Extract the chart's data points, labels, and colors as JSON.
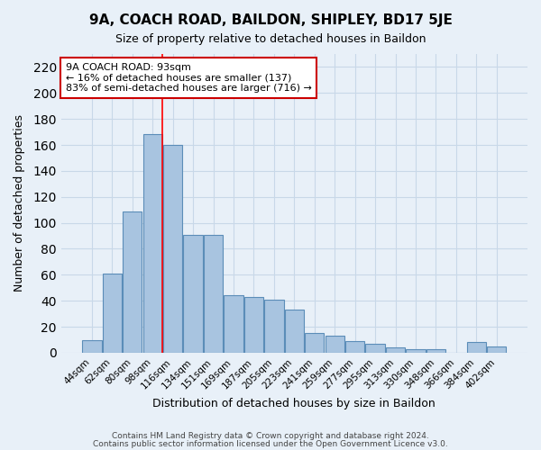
{
  "title": "9A, COACH ROAD, BAILDON, SHIPLEY, BD17 5JE",
  "subtitle": "Size of property relative to detached houses in Baildon",
  "xlabel": "Distribution of detached houses by size in Baildon",
  "ylabel": "Number of detached properties",
  "footer_line1": "Contains HM Land Registry data © Crown copyright and database right 2024.",
  "footer_line2": "Contains public sector information licensed under the Open Government Licence v3.0.",
  "bar_labels": [
    "44sqm",
    "62sqm",
    "80sqm",
    "98sqm",
    "116sqm",
    "134sqm",
    "151sqm",
    "169sqm",
    "187sqm",
    "205sqm",
    "223sqm",
    "241sqm",
    "259sqm",
    "277sqm",
    "295sqm",
    "313sqm",
    "330sqm",
    "348sqm",
    "366sqm",
    "384sqm",
    "402sqm"
  ],
  "bar_values": [
    10,
    61,
    109,
    168,
    160,
    91,
    91,
    44,
    43,
    41,
    33,
    15,
    13,
    9,
    7,
    4,
    3,
    3,
    0,
    8,
    5
  ],
  "bar_color": "#a8c4e0",
  "bar_edge_color": "#5b8db8",
  "ylim": [
    0,
    230
  ],
  "yticks": [
    0,
    20,
    40,
    60,
    80,
    100,
    120,
    140,
    160,
    180,
    200,
    220
  ],
  "red_line_index": 3,
  "annotation_title": "9A COACH ROAD: 93sqm",
  "annotation_line1": "← 16% of detached houses are smaller (137)",
  "annotation_line2": "83% of semi-detached houses are larger (716) →",
  "annotation_box_color": "#ffffff",
  "annotation_box_edge": "#cc0000",
  "grid_color": "#c8d8e8",
  "bg_color": "#e8f0f8"
}
